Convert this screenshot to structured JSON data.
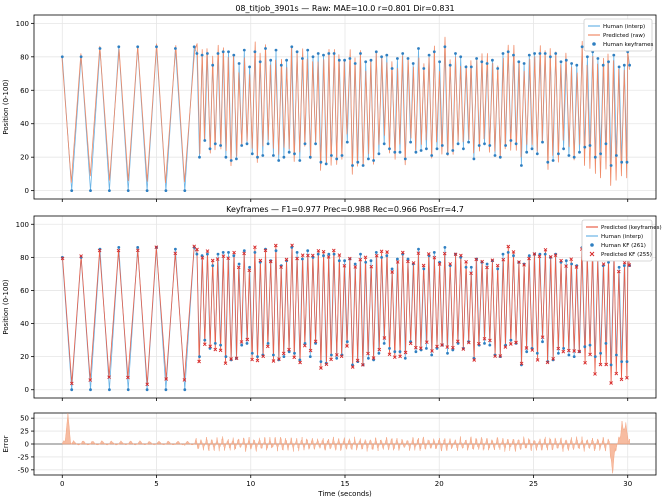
{
  "chart_data": [
    {
      "type": "line",
      "title": "08_titjob_3901s  —  Raw: MAE=10.0  r=0.801  Dir=0.831",
      "xlabel": "",
      "ylabel": "Position (0-100)",
      "xlim": [
        -1.5,
        31.5
      ],
      "ylim": [
        -5,
        105
      ],
      "yticks": [
        0,
        20,
        40,
        60,
        80,
        100
      ],
      "grid": true,
      "legend_position": "top-right",
      "legend": [
        {
          "label": "Human (interp)",
          "kind": "line",
          "color": "#6ab4e6"
        },
        {
          "label": "Predicted (raw)",
          "kind": "line",
          "color": "#f08a66"
        },
        {
          "label": "Human keyframes",
          "kind": "point",
          "color": "#2f7fc1"
        }
      ],
      "series": [
        {
          "name": "Human (interp)",
          "keyframes_t": [
            0,
            0.5,
            1.0,
            1.5,
            2.0,
            2.5,
            3.0,
            3.5,
            4.0,
            4.5,
            5.0,
            5.5,
            6.0,
            6.5,
            7.0
          ],
          "keyframes_v": [
            80,
            0,
            80,
            0,
            85,
            0,
            86,
            0,
            86,
            0,
            86,
            0,
            85,
            0,
            86
          ],
          "fast_section": {
            "start": 7.0,
            "end": 30.0,
            "period": 0.28,
            "high": [
              73,
              86
            ],
            "low": [
              15,
              30
            ]
          }
        },
        {
          "name": "Predicted (raw)",
          "follows": "Human (interp)",
          "noise": 6
        }
      ]
    },
    {
      "type": "line",
      "title": "Keyframes  —  F1=0.977  Prec=0.988  Rec=0.966  PosErr=4.7",
      "xlabel": "",
      "ylabel": "Position (0-100)",
      "xlim": [
        -1.5,
        31.5
      ],
      "ylim": [
        -5,
        105
      ],
      "yticks": [
        0,
        20,
        40,
        60,
        80,
        100
      ],
      "grid": true,
      "legend_position": "top-right",
      "legend": [
        {
          "label": "Predicted (keyframes)",
          "kind": "line",
          "color": "#e8604a"
        },
        {
          "label": "Human (interp)",
          "kind": "line",
          "color": "#6ab4e6"
        },
        {
          "label": "Human KF (261)",
          "kind": "point",
          "color": "#2f7fc1"
        },
        {
          "label": "Predicted KF (255)",
          "kind": "cross",
          "color": "#d62728"
        }
      ]
    },
    {
      "type": "area",
      "title": "",
      "xlabel": "Time (seconds)",
      "ylabel": "Error",
      "xlim": [
        -1.5,
        31.5
      ],
      "ylim": [
        -60,
        60
      ],
      "yticks": [
        -50,
        -25,
        0,
        25,
        50
      ],
      "xticks": [
        0,
        5,
        10,
        15,
        20,
        25,
        30
      ],
      "color": "#f4a582",
      "peaks": [
        {
          "t": 0.3,
          "v": 60
        },
        {
          "t": 29.2,
          "v": -58
        },
        {
          "t": 29.7,
          "v": 45
        },
        {
          "t": 29.9,
          "v": 42
        }
      ],
      "typical_amplitude": 18
    }
  ]
}
